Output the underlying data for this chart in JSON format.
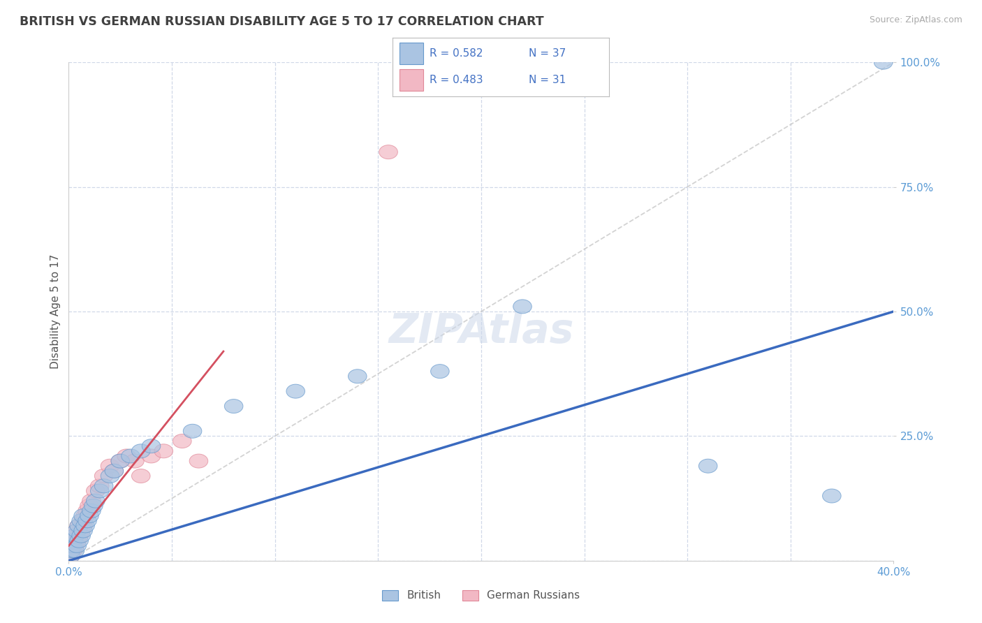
{
  "title": "BRITISH VS GERMAN RUSSIAN DISABILITY AGE 5 TO 17 CORRELATION CHART",
  "source": "Source: ZipAtlas.com",
  "ylabel": "Disability Age 5 to 17",
  "xlim": [
    0.0,
    0.4
  ],
  "ylim": [
    0.0,
    1.0
  ],
  "british_R": 0.582,
  "british_N": 37,
  "german_R": 0.483,
  "german_N": 31,
  "british_color": "#aac4e2",
  "british_edge": "#6699cc",
  "german_color": "#f2b8c4",
  "german_edge": "#e08898",
  "british_line_color": "#3a6abf",
  "german_line_color": "#d45060",
  "ref_line_color": "#c8c8c8",
  "title_color": "#404040",
  "axis_label_color": "#5b9bd5",
  "legend_R_color": "#4472c4",
  "watermark_color": "#ccd8ea",
  "background_color": "#ffffff",
  "grid_color": "#d0d8e8",
  "british_x": [
    0.001,
    0.001,
    0.002,
    0.002,
    0.003,
    0.003,
    0.004,
    0.004,
    0.005,
    0.005,
    0.006,
    0.006,
    0.007,
    0.007,
    0.008,
    0.009,
    0.01,
    0.011,
    0.012,
    0.013,
    0.015,
    0.017,
    0.02,
    0.022,
    0.025,
    0.03,
    0.035,
    0.04,
    0.06,
    0.08,
    0.11,
    0.14,
    0.18,
    0.22,
    0.31,
    0.37,
    0.395
  ],
  "british_y": [
    0.01,
    0.02,
    0.03,
    0.04,
    0.02,
    0.05,
    0.03,
    0.06,
    0.04,
    0.07,
    0.05,
    0.08,
    0.06,
    0.09,
    0.07,
    0.08,
    0.09,
    0.1,
    0.11,
    0.12,
    0.14,
    0.15,
    0.17,
    0.18,
    0.2,
    0.21,
    0.22,
    0.23,
    0.26,
    0.31,
    0.34,
    0.37,
    0.38,
    0.51,
    0.19,
    0.13,
    1.0
  ],
  "german_x": [
    0.001,
    0.001,
    0.002,
    0.002,
    0.003,
    0.003,
    0.004,
    0.004,
    0.005,
    0.005,
    0.006,
    0.007,
    0.007,
    0.008,
    0.009,
    0.01,
    0.011,
    0.013,
    0.015,
    0.017,
    0.02,
    0.022,
    0.025,
    0.028,
    0.032,
    0.035,
    0.04,
    0.046,
    0.055,
    0.063,
    0.155
  ],
  "german_y": [
    0.01,
    0.03,
    0.02,
    0.04,
    0.03,
    0.05,
    0.04,
    0.06,
    0.05,
    0.07,
    0.06,
    0.08,
    0.07,
    0.09,
    0.1,
    0.11,
    0.12,
    0.14,
    0.15,
    0.17,
    0.19,
    0.18,
    0.2,
    0.21,
    0.2,
    0.17,
    0.21,
    0.22,
    0.24,
    0.2,
    0.82
  ],
  "british_line_x": [
    0.0,
    0.4
  ],
  "british_line_y": [
    0.0,
    0.5
  ],
  "german_line_x": [
    0.0,
    0.075
  ],
  "german_line_y": [
    0.03,
    0.42
  ]
}
